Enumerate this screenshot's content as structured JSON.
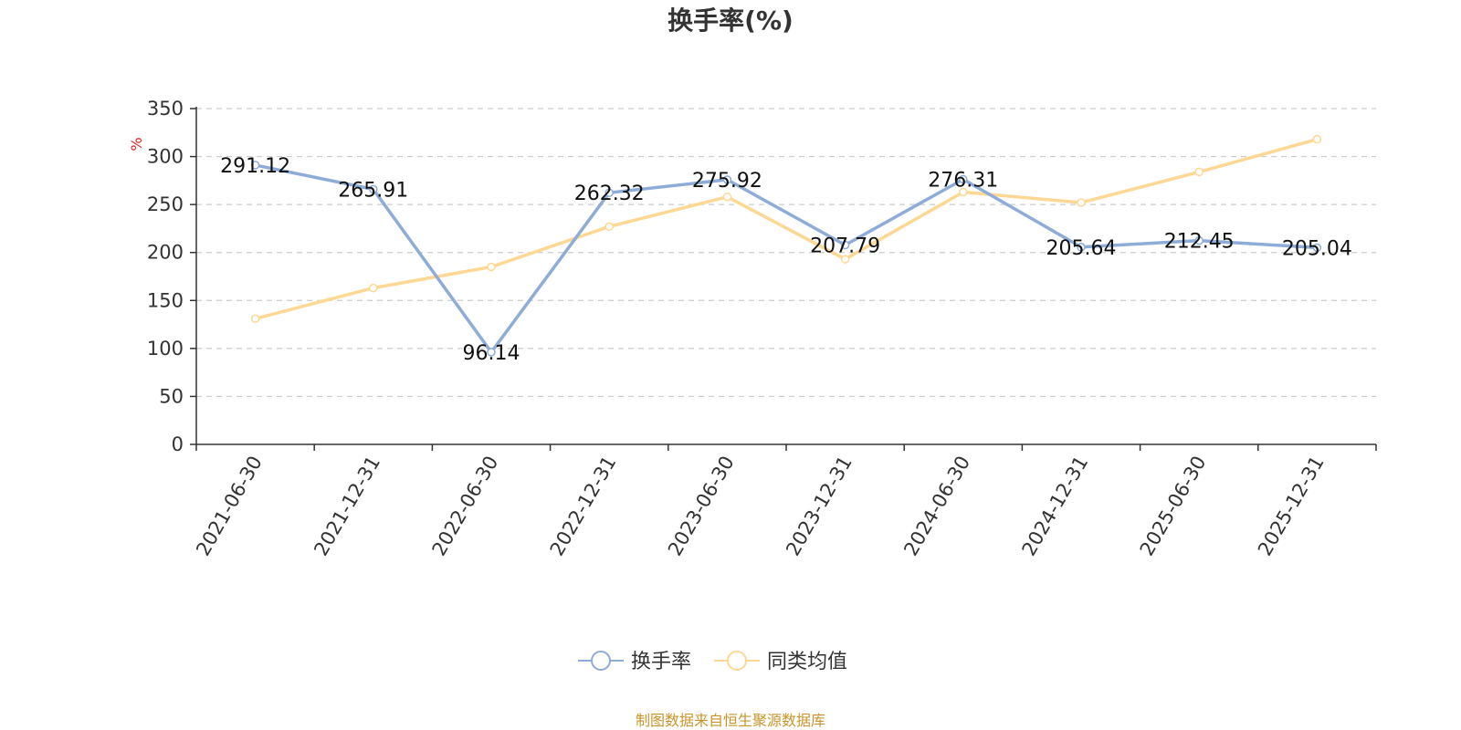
{
  "chart_data": {
    "type": "line",
    "title": "换手率(%)",
    "ylabel": "%",
    "xlabel": "",
    "categories": [
      "2021-06-30",
      "2021-12-31",
      "2022-06-30",
      "2022-12-31",
      "2023-06-30",
      "2023-12-31",
      "2024-06-30",
      "2024-12-31",
      "2025-06-30",
      "2025-12-31"
    ],
    "ylim": [
      0,
      350
    ],
    "yticks": [
      0,
      50,
      100,
      150,
      200,
      250,
      300,
      350
    ],
    "grid": true,
    "legend_position": "bottom-center",
    "series": [
      {
        "name": "换手率",
        "color": "#8eacd8",
        "values": [
          291.12,
          265.91,
          96.14,
          262.32,
          275.92,
          207.79,
          276.31,
          205.64,
          212.45,
          205.04
        ],
        "data_labels": [
          "291.12",
          "265.91",
          "96.14",
          "262.32",
          "275.92",
          "207.79",
          "276.31",
          "205.64",
          "212.45",
          "205.04"
        ]
      },
      {
        "name": "同类均值",
        "color": "#fcd894",
        "values": [
          131,
          163,
          185,
          227,
          258,
          193,
          263,
          252,
          284,
          318
        ]
      }
    ],
    "source_note": "制图数据来自恒生聚源数据库",
    "source_color": "#c9952c",
    "unit_color": "#e02020",
    "axis_color": "#333333",
    "grid_color": "#cccccc"
  }
}
